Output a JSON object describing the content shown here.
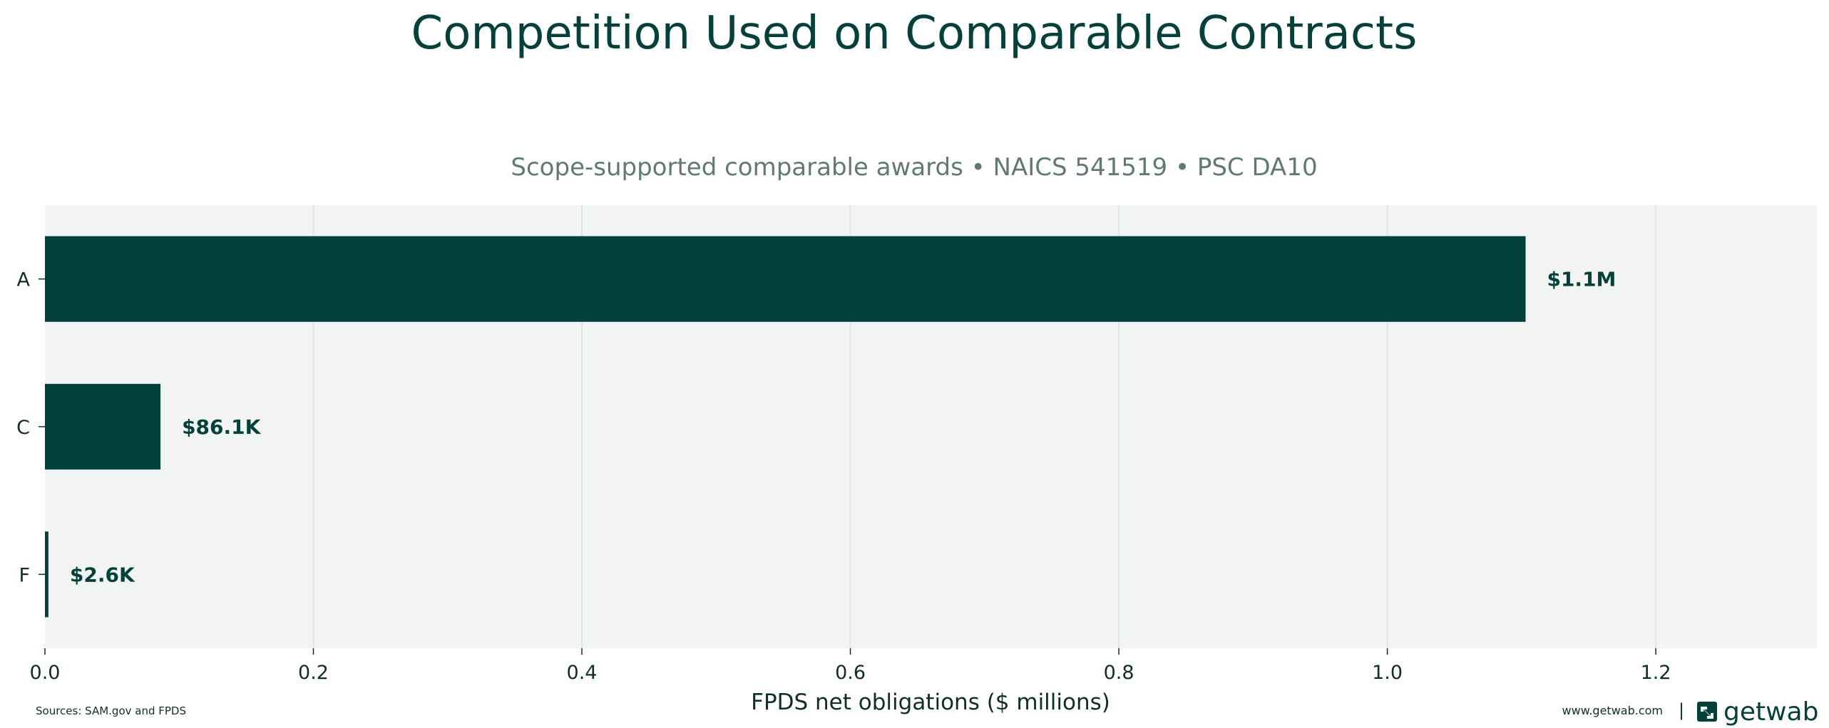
{
  "chart_data": {
    "type": "bar",
    "orientation": "horizontal",
    "title": "Competition Used on Comparable Contracts",
    "subtitle": "Scope-supported comparable awards • NAICS 541519 • PSC DA10",
    "xlabel": "FPDS net obligations ($ millions)",
    "ylabel": "",
    "categories": [
      "A",
      "C",
      "F"
    ],
    "values": [
      1.103,
      0.0861,
      0.0026
    ],
    "data_labels": [
      "$1.1M",
      "$86.1K",
      "$2.6K"
    ],
    "xlim": [
      0,
      1.32
    ],
    "xticks": [
      0.0,
      0.2,
      0.4,
      0.6,
      0.8,
      1.0,
      1.2
    ],
    "xtick_labels": [
      "0.0",
      "0.2",
      "0.4",
      "0.6",
      "0.8",
      "1.0",
      "1.2"
    ],
    "grid": "vertical",
    "colors": {
      "bar": "#03423a",
      "plot_background": "#f2f4f3",
      "grid": "#dfe6e3",
      "text": "#0f2e29",
      "subtitle": "#5f7a73"
    }
  },
  "footer": {
    "sources": "Sources: SAM.gov and FPDS",
    "website": "www.getwab.com",
    "separator": "|",
    "brand": "getwab",
    "brand_icon": "getwab-logo-icon"
  }
}
